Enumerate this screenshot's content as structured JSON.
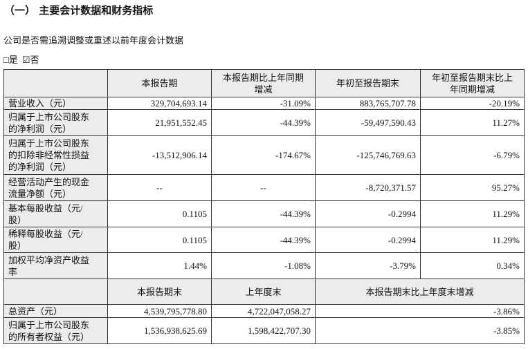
{
  "heading": "（一） 主要会计数据和财务指标",
  "question": "公司是否需追溯调整或重述以前年度会计数据",
  "options": [
    "□是",
    "☑否"
  ],
  "table": {
    "header": [
      [
        "本报告期"
      ],
      [
        "本报告期比上年同期",
        "增减"
      ],
      [
        "年初至报告期末"
      ],
      [
        "年初至报告期末比上",
        "年同期增减"
      ]
    ],
    "rows": [
      [
        [
          "营业收入（元）"
        ],
        "329,704,693.14",
        "-31.09%",
        "883,765,707.78",
        "-20.19%"
      ],
      [
        [
          "归属于上市公司股东",
          "的净利润（元）"
        ],
        "21,951,552.45",
        "-44.39%",
        "-59,497,590.43",
        "11.27%"
      ],
      [
        [
          "归属于上市公司股东",
          "的扣除非经常性损益",
          "的净利润（元）"
        ],
        "-13,512,906.14",
        "-174.67%",
        "-125,746,769.63",
        "-6.79%"
      ],
      [
        [
          "经营活动产生的现金",
          "流量净额（元）"
        ],
        "--",
        "--",
        "-8,720,371.57",
        "95.27%"
      ],
      [
        [
          "基本每股收益（元/",
          "股）"
        ],
        "0.1105",
        "-44.39%",
        "-0.2994",
        "11.29%"
      ],
      [
        [
          "稀释每股收益（元/",
          "股）"
        ],
        "0.1105",
        "-44.39%",
        "-0.2994",
        "11.29%"
      ],
      [
        [
          "加权平均净资产收益",
          "率"
        ],
        "1.44%",
        "-1.08%",
        "-3.79%",
        "0.34%"
      ]
    ],
    "header2": [
      "本报告期末",
      "上年度末",
      "本报告期末比上年度末增减"
    ],
    "rows2": [
      [
        [
          "总资产（元）"
        ],
        "4,539,795,778.80",
        "4,722,047,058.27",
        "-3.86%"
      ],
      [
        [
          "归属于上市公司股东",
          "的所有者权益（元）"
        ],
        "1,536,938,625.69",
        "1,598,422,707.30",
        "-3.85%"
      ]
    ]
  }
}
